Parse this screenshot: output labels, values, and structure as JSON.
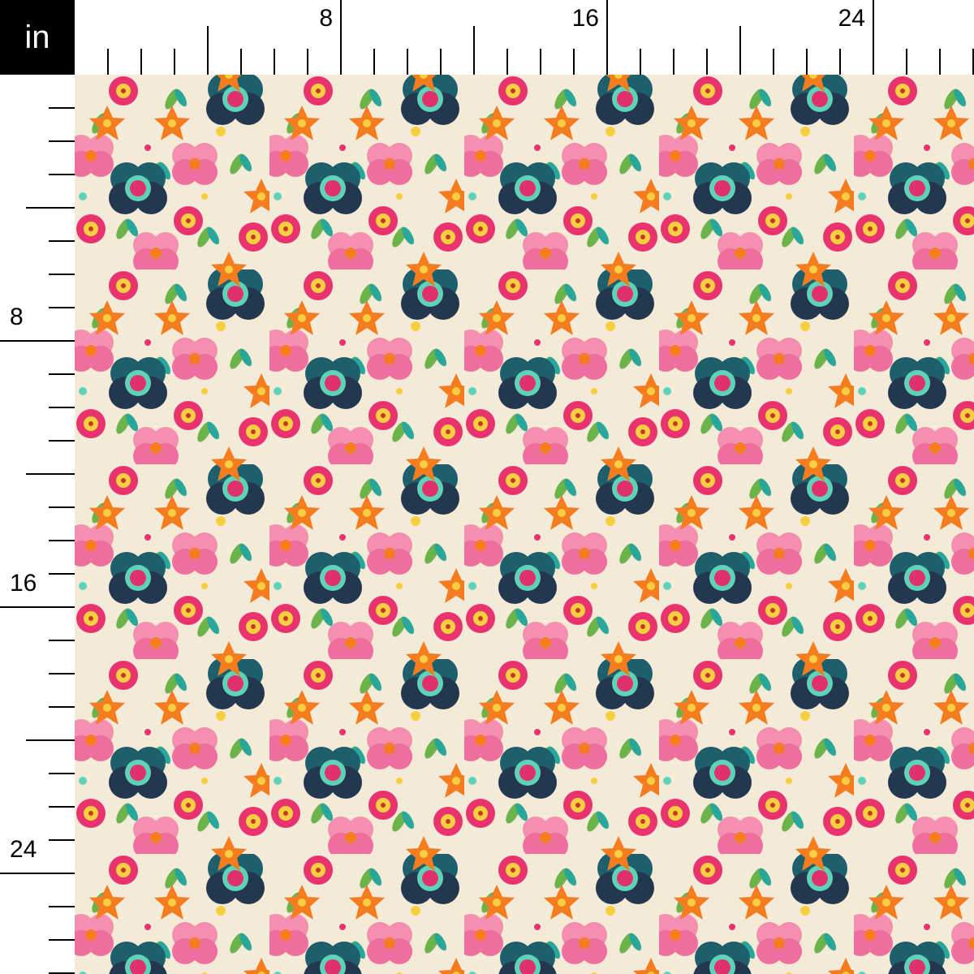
{
  "ruler": {
    "unit": "in",
    "top_labels": [
      "8",
      "16",
      "24"
    ],
    "left_labels": [
      "8",
      "16",
      "24"
    ],
    "ticks_per_inch": 1
  },
  "swatch": {
    "pattern": "embroidered floral",
    "colors": {
      "background": "#f3ead8",
      "pink": "#ee5a8e",
      "light_pink": "#f48fb1",
      "orange": "#f57c1f",
      "teal": "#1f5f6b",
      "dark_navy": "#23384f",
      "green": "#6bb34a",
      "yellow": "#f4d03f",
      "mint": "#5fd3b8"
    }
  }
}
